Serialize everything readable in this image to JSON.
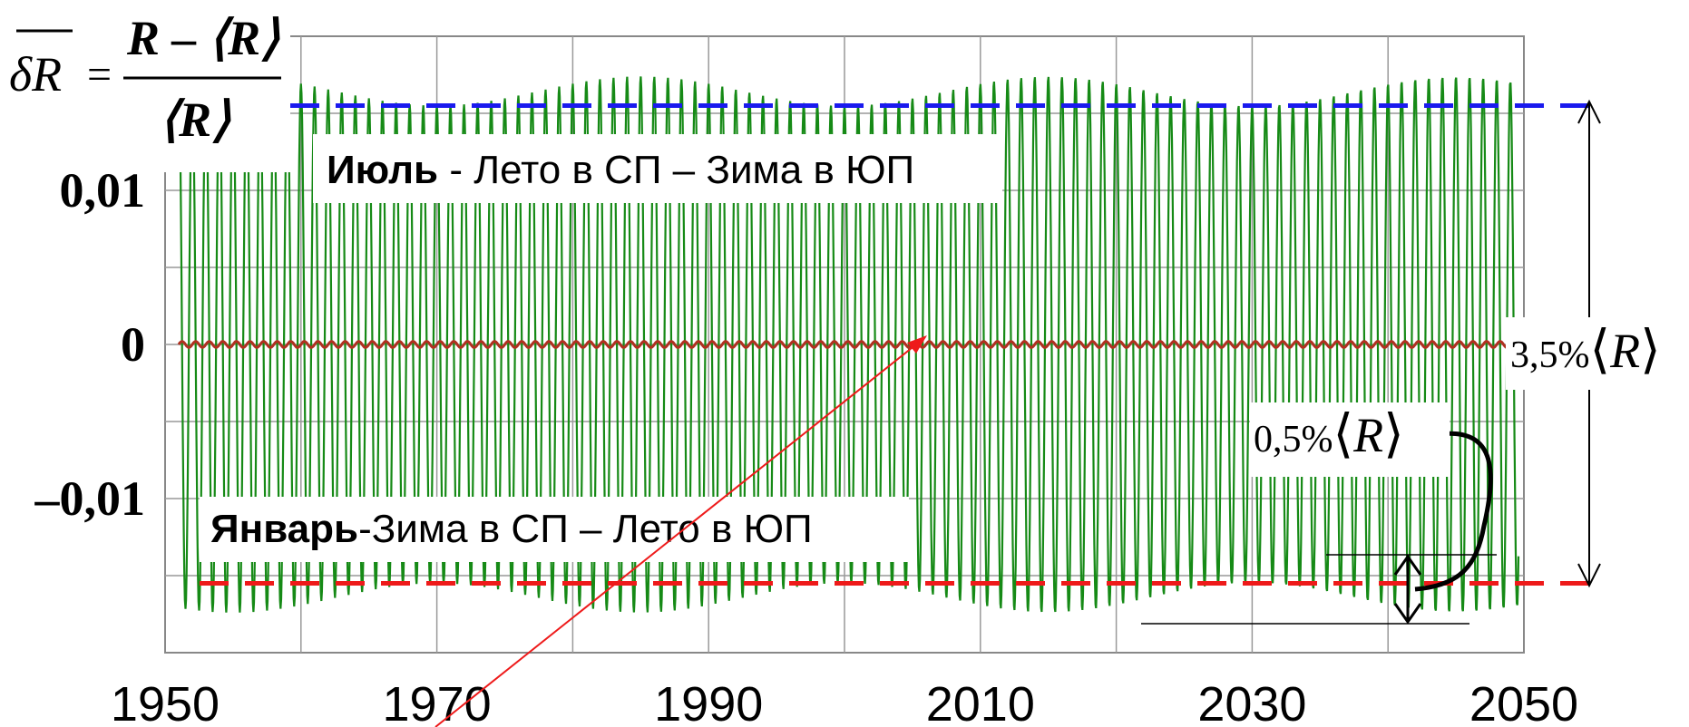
{
  "chart_data": {
    "type": "line",
    "xlim": [
      1950,
      2050
    ],
    "ylim": [
      -0.02,
      0.02
    ],
    "x_ticks": [
      "1950",
      "1970",
      "1990",
      "2010",
      "2030",
      "2050"
    ],
    "y_ticks": [
      {
        "value": 0.01,
        "label": "0,01"
      },
      {
        "value": 0,
        "label": "0"
      },
      {
        "value": -0.01,
        "label": "–0,01"
      }
    ],
    "grid": true,
    "series": [
      {
        "color": "#168a16",
        "x_start": 1951.0,
        "x_end": 2049.6,
        "period_years": 1.0,
        "amplitude_max": 0.0174,
        "amplitude_min": 0.0155,
        "note_values": "annual oscillation of δR/<R>, peaks in July, troughs in January"
      },
      {
        "color": "#b03020",
        "x_start": 1951.0,
        "x_end": 2049.6,
        "center": 0,
        "amplitude": 0.0002
      }
    ],
    "reference_lines": [
      {
        "value": 0.0155,
        "color": "#1a1aee",
        "style": "dashed"
      },
      {
        "value": -0.0155,
        "color": "#ee1a1a",
        "style": "dashed"
      }
    ],
    "formula": {
      "lhs": "δR",
      "numerator": "R – ⟨R⟩",
      "denominator": "⟨R⟩"
    },
    "annotations": {
      "july_bold": "Июль",
      "july_rest": " - Лето в СП – Зима в ЮП",
      "january_bold": "Январь",
      "january_rest": "-Зима в СП – Лето в ЮП",
      "range_full": "3,5%",
      "range_full_symbol": "R",
      "range_small": "0,5%",
      "range_small_symbol": "R"
    },
    "colors": {
      "oscillation": "#168a16",
      "mean": "#b03020",
      "upper_dashed": "#1a1aee",
      "lower_dashed": "#ee1a1a",
      "pointer": "#ee1a1a"
    }
  }
}
